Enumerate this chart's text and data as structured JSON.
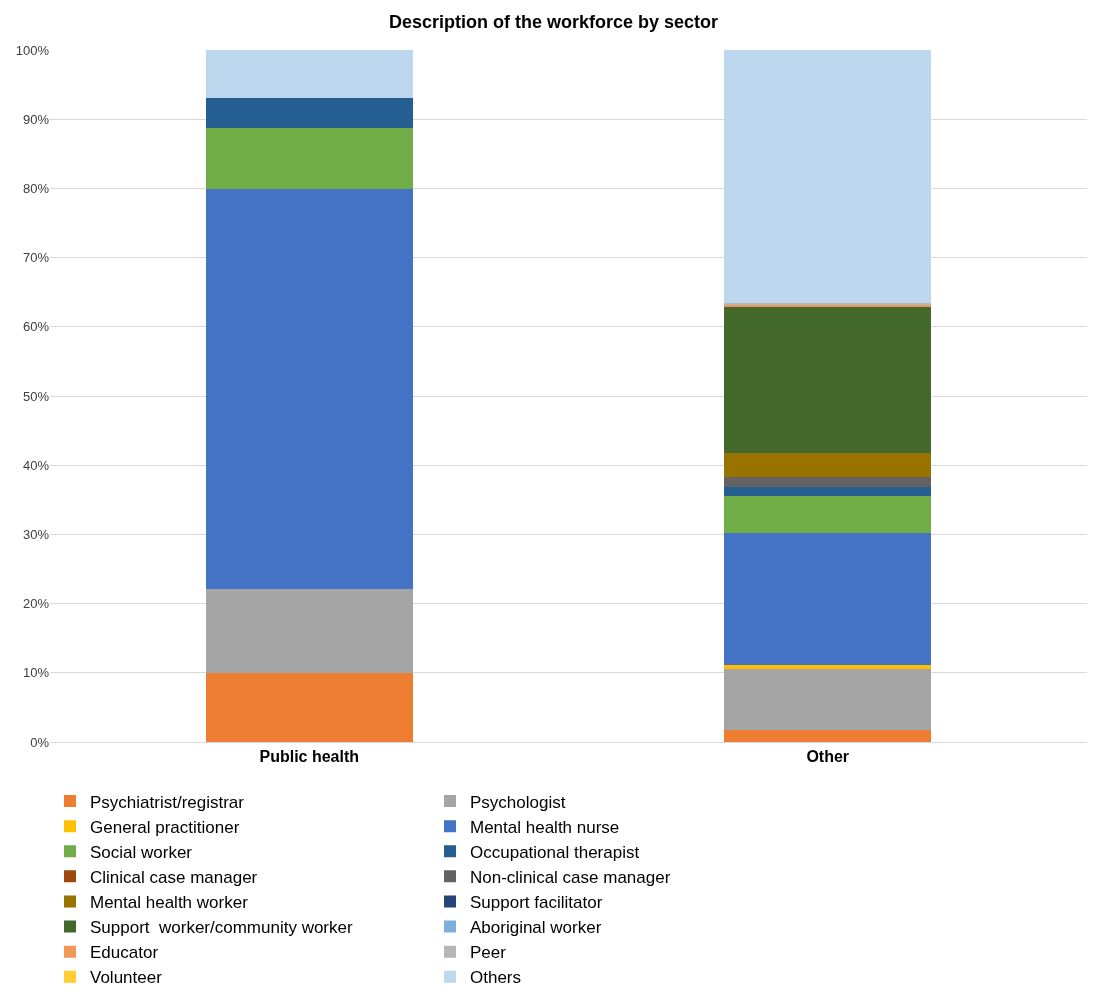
{
  "chart_data": {
    "type": "bar",
    "title": "Description of the workforce by sector",
    "categories": [
      "Public health",
      "Other"
    ],
    "stacked": true,
    "ylim": [
      0,
      100
    ],
    "yticks": [
      {
        "value": 0,
        "label": "0%"
      },
      {
        "value": 10,
        "label": "10%"
      },
      {
        "value": 20,
        "label": "20%"
      },
      {
        "value": 30,
        "label": "30%"
      },
      {
        "value": 40,
        "label": "40%"
      },
      {
        "value": 50,
        "label": "50%"
      },
      {
        "value": 60,
        "label": "60%"
      },
      {
        "value": 70,
        "label": "70%"
      },
      {
        "value": 80,
        "label": "80%"
      },
      {
        "value": 90,
        "label": "90%"
      },
      {
        "value": 100,
        "label": "100%"
      }
    ],
    "grid": "y",
    "legend": "bottom",
    "series": [
      {
        "name": "Psychiatrist/registrar",
        "color": "#ed7d31",
        "values": [
          10.0,
          1.8
        ]
      },
      {
        "name": "Psychologist",
        "color": "#a5a5a5",
        "values": [
          12.1,
          8.7
        ]
      },
      {
        "name": "General practitioner",
        "color": "#ffc000",
        "values": [
          0,
          0.7
        ]
      },
      {
        "name": "Mental health nurse",
        "color": "#4472c4",
        "values": [
          57.8,
          19.0
        ]
      },
      {
        "name": "Social worker",
        "color": "#70ad47",
        "values": [
          8.9,
          5.4
        ]
      },
      {
        "name": "Occupational therapist",
        "color": "#255e91",
        "values": [
          4.2,
          1.2
        ]
      },
      {
        "name": "Clinical case manager",
        "color": "#9e480e",
        "values": [
          0,
          0
        ]
      },
      {
        "name": "Non-clinical case manager",
        "color": "#636363",
        "values": [
          0,
          1.5
        ]
      },
      {
        "name": "Mental health worker",
        "color": "#997300",
        "values": [
          0,
          3.5
        ]
      },
      {
        "name": "Support facilitator",
        "color": "#264478",
        "values": [
          0,
          0
        ]
      },
      {
        "name": "Support  worker/community worker",
        "color": "#43682b",
        "values": [
          0,
          21.0
        ]
      },
      {
        "name": "Aboriginal worker",
        "color": "#7cafdd",
        "values": [
          0,
          0
        ]
      },
      {
        "name": "Educator",
        "color": "#f1975a",
        "values": [
          0,
          0.4
        ]
      },
      {
        "name": "Peer",
        "color": "#b7b7b7",
        "values": [
          0,
          0.3
        ]
      },
      {
        "name": "Volunteer",
        "color": "#ffcd33",
        "values": [
          0,
          0
        ]
      },
      {
        "name": "Others",
        "color": "#bdd7ee",
        "values": [
          7.0,
          36.5
        ]
      }
    ]
  }
}
